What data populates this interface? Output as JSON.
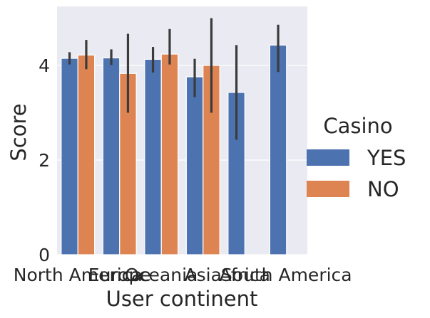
{
  "chart_data": {
    "type": "bar",
    "title": "",
    "xlabel": "User continent",
    "ylabel": "Score",
    "categories": [
      "North America",
      "Europe",
      "Oceania",
      "Asia",
      "Africa",
      "South America"
    ],
    "ylim": [
      0,
      5.25
    ],
    "yticks": [
      0,
      2,
      4
    ],
    "grid": true,
    "legend": {
      "title": "Casino",
      "position": "right"
    },
    "series": [
      {
        "name": "YES",
        "color": "#4c72b0",
        "values": [
          4.15,
          4.16,
          4.13,
          3.76,
          3.43,
          4.43
        ],
        "ci_low": [
          4.02,
          4.01,
          3.85,
          3.33,
          2.43,
          3.86
        ],
        "ci_high": [
          4.28,
          4.34,
          4.39,
          4.14,
          4.43,
          4.86
        ]
      },
      {
        "name": "NO",
        "color": "#dd8452",
        "values": [
          4.22,
          3.83,
          4.24,
          4.0,
          null,
          null
        ],
        "ci_low": [
          3.92,
          3.0,
          4.02,
          3.0,
          null,
          null
        ],
        "ci_high": [
          4.54,
          4.67,
          4.77,
          5.0,
          null,
          null
        ]
      }
    ]
  }
}
